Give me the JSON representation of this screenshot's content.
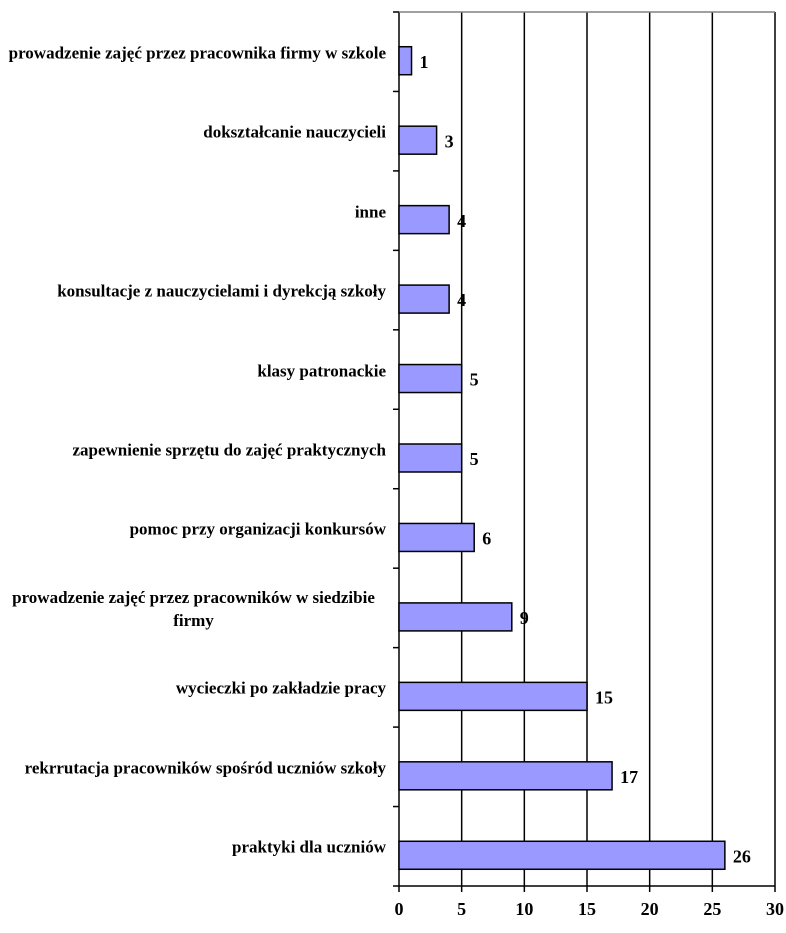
{
  "chart_data": {
    "type": "barh",
    "categories": [
      "prowadzenie zajęć przez pracownika firmy w szkole",
      "dokształcanie nauczycieli",
      "inne",
      "konsultacje z nauczycielami i dyrekcją szkoły",
      "klasy patronackie",
      "zapewnienie sprzętu do zajęć praktycznych",
      "pomoc przy organizacji konkursów",
      "prowadzenie zajęć przez pracowników w siedzibie firmy",
      "wycieczki po zakładzie pracy",
      "rekrrutacja pracowników spośród uczniów szkoły",
      "praktyki dla uczniów"
    ],
    "values": [
      1,
      3,
      4,
      4,
      5,
      5,
      6,
      9,
      15,
      17,
      26
    ],
    "color": "#9999ff",
    "xlim": [
      0,
      30
    ],
    "xticks": [
      0,
      5,
      10,
      15,
      20,
      25,
      30
    ],
    "grid": true
  }
}
